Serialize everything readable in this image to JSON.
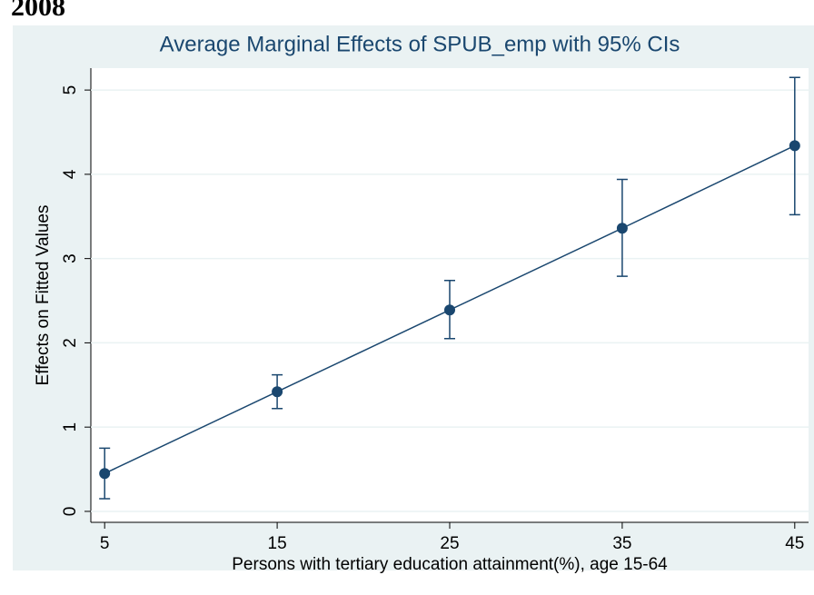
{
  "heading": "2008",
  "chart_data": {
    "type": "errorbar-line",
    "title": "Average Marginal Effects of SPUB_emp with 95% CIs",
    "xlabel": "Persons with tertiary education attainment(%), age 15-64",
    "ylabel": "Effects on Fitted Values",
    "x": [
      5,
      15,
      25,
      35,
      45
    ],
    "values": [
      0.45,
      1.42,
      2.39,
      3.36,
      4.34
    ],
    "lower": [
      0.15,
      1.22,
      2.05,
      2.79,
      3.52
    ],
    "upper": [
      0.75,
      1.62,
      2.74,
      3.94,
      5.15
    ],
    "color": "#1a476f",
    "xlim": [
      4.2,
      45.8
    ],
    "xticks": [
      5,
      15,
      25,
      35,
      45
    ],
    "ylim": [
      -0.13,
      5.26
    ],
    "yticks": [
      0,
      1,
      2,
      3,
      4,
      5
    ],
    "grid": true
  }
}
